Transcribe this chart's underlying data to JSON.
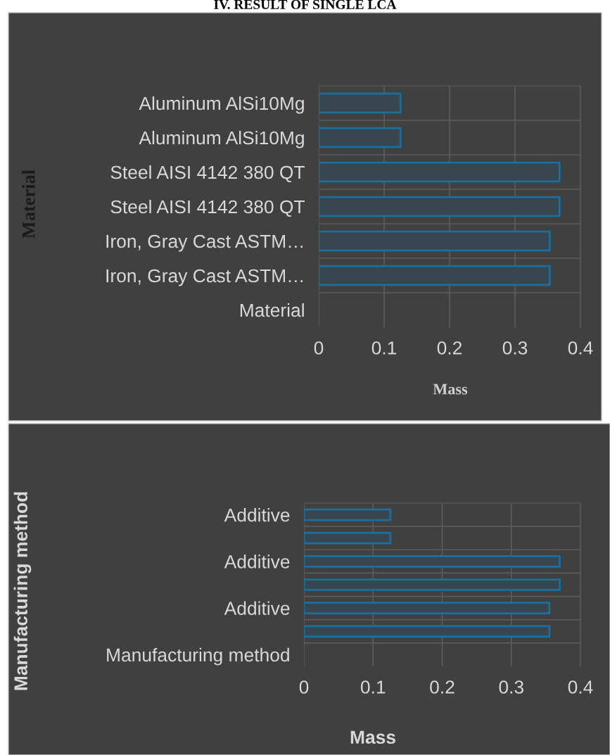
{
  "chart_data": [
    {
      "type": "bar",
      "orientation": "horizontal",
      "title": "IV. RESULT OF SINGLE LCA",
      "xlabel": "Mass",
      "ylabel": "Material",
      "categories": [
        "Aluminum AlSi10Mg",
        "Aluminum AlSi10Mg",
        "Steel AISI 4142 380 QT",
        "Steel AISI 4142 380 QT",
        "Iron, Gray Cast ASTM…",
        "Iron, Gray Cast ASTM…",
        "Material"
      ],
      "values": [
        0.125,
        0.125,
        0.368,
        0.368,
        0.353,
        0.353,
        null
      ],
      "color": "#1a6f9c",
      "xlim": [
        0,
        0.4
      ],
      "xticks": [
        {
          "value": 0,
          "label": "0"
        },
        0.1,
        0.2,
        0.3,
        0.4
      ],
      "grid": true
    },
    {
      "type": "bar",
      "orientation": "horizontal",
      "xlabel": "Mass",
      "ylabel": "Manufacturing method",
      "categories": [
        "Additive",
        null,
        "Additive",
        null,
        "Additive",
        null,
        "Manufacturing method"
      ],
      "values": [
        0.125,
        0.125,
        0.37,
        0.37,
        0.355,
        0.355,
        null
      ],
      "color": "#1a6f9c",
      "xlim": [
        0,
        0.4
      ],
      "xticks": [
        {
          "value": 0,
          "label": "0"
        },
        0.1,
        0.2,
        0.3,
        0.4
      ],
      "grid": true
    }
  ]
}
